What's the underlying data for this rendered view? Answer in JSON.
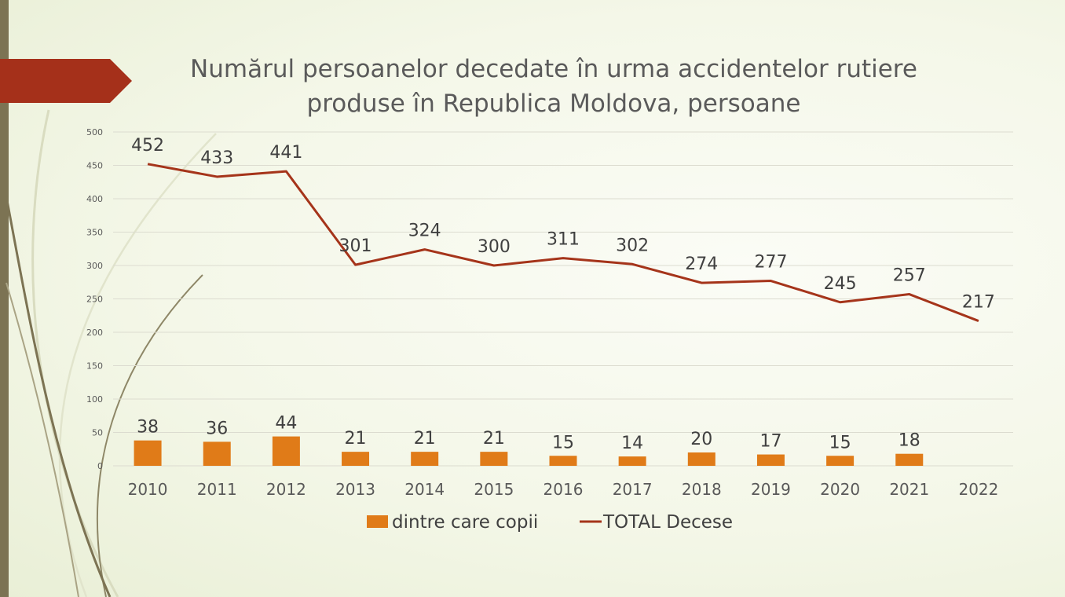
{
  "title": "Numărul persoanelor decedate în urma accidentelor rutiere produse în Republica Moldova, persoane",
  "colors": {
    "line": "#a5341a",
    "bar": "#e07b18",
    "arrow": "#a5301a",
    "grid": "#dcdcd0",
    "label": "#404040",
    "axis_text": "#595959"
  },
  "chart_data": {
    "type": "bar+line",
    "categories": [
      "2010",
      "2011",
      "2012",
      "2013",
      "2014",
      "2015",
      "2016",
      "2017",
      "2018",
      "2019",
      "2020",
      "2021",
      "2022"
    ],
    "series": [
      {
        "name": "dintre care copii",
        "type": "bar",
        "values": [
          38,
          36,
          44,
          21,
          21,
          21,
          15,
          14,
          20,
          17,
          15,
          18,
          null
        ]
      },
      {
        "name": "TOTAL Decese",
        "type": "line",
        "values": [
          452,
          433,
          441,
          301,
          324,
          300,
          311,
          302,
          274,
          277,
          245,
          257,
          217
        ]
      }
    ],
    "ylim": [
      0,
      500
    ],
    "yticks": [
      0,
      50,
      100,
      150,
      200,
      250,
      300,
      350,
      400,
      450,
      500
    ],
    "grid": true,
    "legend": "bottom",
    "data_labels": true
  }
}
